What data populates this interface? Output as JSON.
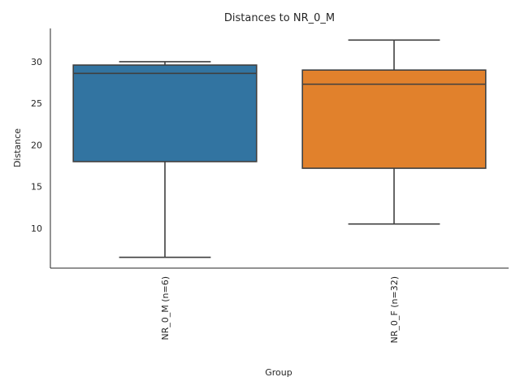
{
  "chart_data": {
    "type": "box",
    "title": "Distances to NR_0_M",
    "xlabel": "Group",
    "ylabel": "Distance",
    "ylim": [
      5.2,
      34.0
    ],
    "yticks": [
      10,
      15,
      20,
      25,
      30
    ],
    "grid": false,
    "legend": "none",
    "categories": [
      "NR_0_M (n=6)",
      "NR_0_F (n=32)"
    ],
    "boxes": [
      {
        "name": "NR_0_M (n=6)",
        "min": 6.5,
        "q1": 18.0,
        "median": 28.6,
        "q3": 29.6,
        "max": 30.0,
        "color": "#3274a1"
      },
      {
        "name": "NR_0_F (n=32)",
        "min": 10.5,
        "q1": 17.2,
        "median": 27.3,
        "q3": 29.0,
        "max": 32.6,
        "color": "#e1812c"
      }
    ]
  }
}
